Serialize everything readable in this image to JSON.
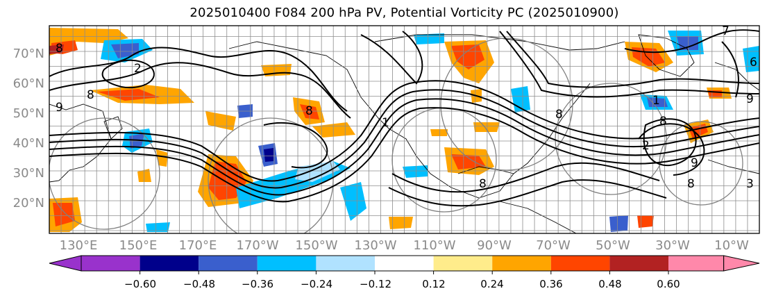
{
  "title": "2025010400 F084 200 hPa PV, Potential Vorticity PC (2025010900)",
  "lat_labels": [
    "70°N",
    "60°N",
    "50°N",
    "40°N",
    "30°N",
    "20°N"
  ],
  "lon_labels": [
    "130°E",
    "150°E",
    "170°E",
    "170°W",
    "150°W",
    "130°W",
    "110°W",
    "90°W",
    "70°W",
    "50°W",
    "30°W",
    "10°W"
  ],
  "colorbar": {
    "colors": [
      "#9932cc",
      "#00008b",
      "#3a5fcd",
      "#00bfff",
      "#b0e2ff",
      "#ffffff",
      "#ffec8b",
      "#ffa500",
      "#ff4500",
      "#b22222",
      "#ff88aa"
    ],
    "labels": [
      "−0.60",
      "−0.48",
      "−0.36",
      "−0.24",
      "−0.12",
      "0.12",
      "0.24",
      "0.36",
      "0.48",
      "0.60"
    ]
  },
  "contour_labels": [
    "8",
    "9",
    "2",
    "8",
    "1",
    "8",
    "8",
    "8",
    "9",
    "7",
    "8",
    "2",
    "1",
    "9",
    "8",
    "6",
    "3"
  ],
  "colors": {
    "contour": "#000000",
    "grid": "#8c8c8c",
    "coast": "#000000"
  }
}
